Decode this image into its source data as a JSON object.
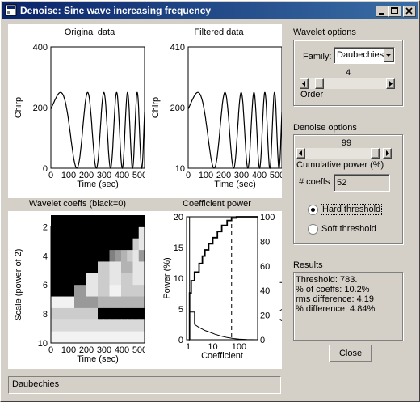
{
  "window": {
    "title": "Denoise: Sine wave increasing frequency"
  },
  "plots": {
    "original": {
      "title": "Original data",
      "ylabel": "Chirp",
      "xlabel": "Time (sec)",
      "yticks": [
        "400",
        "200",
        "0"
      ],
      "xticks": [
        "0",
        "100",
        "200",
        "300",
        "400",
        "500"
      ]
    },
    "filtered": {
      "title": "Filtered data",
      "ylabel": "Chirp",
      "xlabel": "Time (sec)",
      "yticks": [
        "410",
        "200",
        "10"
      ],
      "xticks": [
        "0",
        "100",
        "200",
        "300",
        "400",
        "500"
      ]
    },
    "wavelet": {
      "title": "Wavelet coeffs (black=0)",
      "ylabel": "Scale (power of 2)",
      "xlabel": "Time (sec)",
      "yticks": [
        "2",
        "4",
        "6",
        "8",
        "10"
      ],
      "xticks": [
        "0",
        "100",
        "200",
        "300",
        "400",
        "500"
      ]
    },
    "power": {
      "title": "Coefficient power",
      "ylabel": "Power (%)",
      "ylabel2": "Cumulative power (%)",
      "xlabel": "Coefficient",
      "yticks": [
        "20",
        "15",
        "10",
        "5",
        "0"
      ],
      "yticks2": [
        "100",
        "80",
        "60",
        "40",
        "20",
        "0"
      ],
      "xticks": [
        "1",
        "10",
        "100"
      ]
    }
  },
  "chart_data": [
    {
      "type": "line",
      "title": "Original data",
      "xlabel": "Time (sec)",
      "ylabel": "Chirp",
      "xlim": [
        0,
        512
      ],
      "ylim": [
        0,
        400
      ],
      "description_series": [
        {
          "x": [
            0,
            50,
            100,
            130,
            160,
            200,
            250,
            300,
            350,
            400,
            450,
            500
          ],
          "y": [
            150,
            240,
            160,
            40,
            0,
            250,
            0,
            250,
            0,
            250,
            0,
            250
          ]
        }
      ]
    },
    {
      "type": "line",
      "title": "Filtered data",
      "xlabel": "Time (sec)",
      "ylabel": "Chirp",
      "xlim": [
        0,
        512
      ],
      "ylim": [
        10,
        410
      ]
    },
    {
      "type": "heatmap",
      "title": "Wavelet coeffs (black=0)",
      "xlabel": "Time (sec)",
      "ylabel": "Scale (power of 2)",
      "xlim": [
        0,
        512
      ],
      "ylim": [
        1,
        10
      ]
    },
    {
      "type": "line",
      "title": "Coefficient power",
      "xlabel": "Coefficient",
      "ylabel": "Power (%)",
      "ylabel2": "Cumulative power (%)",
      "xscale": "log",
      "xlim": [
        1,
        512
      ],
      "ylim": [
        0,
        20
      ],
      "ylim2": [
        0,
        100
      ],
      "threshold_coeff": 52
    }
  ],
  "wavelet_options": {
    "title": "Wavelet options",
    "family_label": "Family:",
    "family_value": "Daubechies",
    "order_value": "4",
    "order_label": "Order",
    "order_level": 0.1
  },
  "denoise_options": {
    "title": "Denoise options",
    "power_value": "99",
    "power_label": "Cumulative power (%)",
    "power_level": 0.95,
    "coeffs_label": "# coeffs",
    "coeffs_value": "52",
    "hard_label": "Hard threshold",
    "soft_label": "Soft threshold",
    "selected": "hard"
  },
  "results": {
    "title": "Results",
    "lines": [
      "Threshold: 783.",
      "% of coeffs: 10.2%",
      "rms difference: 4.19",
      "% difference: 4.84%"
    ]
  },
  "close_label": "Close",
  "status": "Daubechies"
}
